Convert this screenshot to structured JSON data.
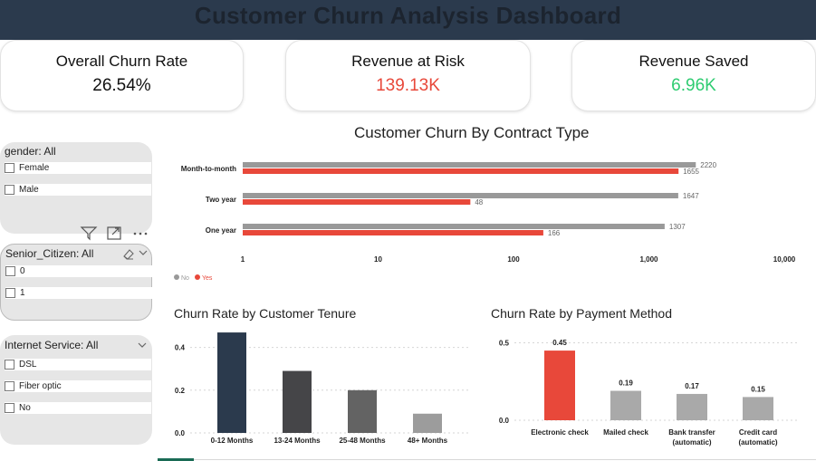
{
  "header": {
    "title": "Customer Churn Analysis Dashboard"
  },
  "kpis": {
    "churn_rate": {
      "label": "Overall Churn Rate",
      "value": "26.54%",
      "color": "#111111"
    },
    "revenue_at_risk": {
      "label": "Revenue at Risk",
      "value": "139.13K",
      "color": "#e8483a"
    },
    "revenue_saved": {
      "label": "Revenue Saved",
      "value": "6.96K",
      "color": "#2ecc71"
    }
  },
  "slicers": {
    "gender": {
      "title": "gender: All",
      "options": [
        "Female",
        "Male"
      ]
    },
    "senior_citizen": {
      "title": "Senior_Citizen: All",
      "options": [
        "0",
        "1"
      ]
    },
    "internet_service": {
      "title": "Internet Service: All",
      "options": [
        "DSL",
        "Fiber optic",
        "No"
      ]
    }
  },
  "icons": {
    "filter": "filter-icon",
    "focus": "focus-mode-icon",
    "more": "more-options-icon",
    "eraser": "clear-selections-icon",
    "chevron": "chevron-down-icon"
  },
  "colors": {
    "no": "#999999",
    "yes": "#e8483a",
    "navy": "#2b3a4d",
    "accent_tab": "#1a6b55"
  },
  "chart_data": [
    {
      "type": "bar",
      "orientation": "horizontal",
      "title": "Customer Churn By Contract Type",
      "x_scale": "log",
      "x_ticks": [
        "1",
        "10",
        "100",
        "1,000",
        "10,000"
      ],
      "xlim": [
        1,
        10000
      ],
      "categories": [
        "Month-to-month",
        "Two year",
        "One year"
      ],
      "series": [
        {
          "name": "No",
          "values": [
            2220,
            1647,
            1307
          ],
          "labels": [
            "2220",
            "1647",
            "1307"
          ],
          "color": "#999999"
        },
        {
          "name": "Yes",
          "values": [
            1655,
            48,
            166
          ],
          "labels": [
            "1655",
            "48",
            "166"
          ],
          "color": "#e8483a"
        }
      ],
      "legend": "bottom-left"
    },
    {
      "type": "bar",
      "title": "Churn Rate by Customer Tenure",
      "categories": [
        "0-12 Months",
        "13-24 Months",
        "25-48 Months",
        "48+ Months"
      ],
      "values": [
        0.47,
        0.29,
        0.2,
        0.09
      ],
      "colors": [
        "#2b3a4d",
        "#454548",
        "#636363",
        "#9c9c9c"
      ],
      "y_ticks": [
        "0.0",
        "0.2",
        "0.4"
      ],
      "ylim": [
        0,
        0.5
      ],
      "grid": true
    },
    {
      "type": "bar",
      "title": "Churn Rate by Payment Method",
      "categories": [
        [
          "Electronic check"
        ],
        [
          "Mailed check"
        ],
        [
          "Bank transfer",
          "(automatic)"
        ],
        [
          "Credit card",
          "(automatic)"
        ]
      ],
      "values": [
        0.45,
        0.19,
        0.17,
        0.15
      ],
      "labels": [
        "0.45",
        "0.19",
        "0.17",
        "0.15"
      ],
      "colors": [
        "#e8483a",
        "#a9a9a9",
        "#a9a9a9",
        "#a9a9a9"
      ],
      "y_ticks": [
        "0.0",
        "0.5"
      ],
      "ylim": [
        0,
        0.55
      ],
      "grid": true
    }
  ]
}
